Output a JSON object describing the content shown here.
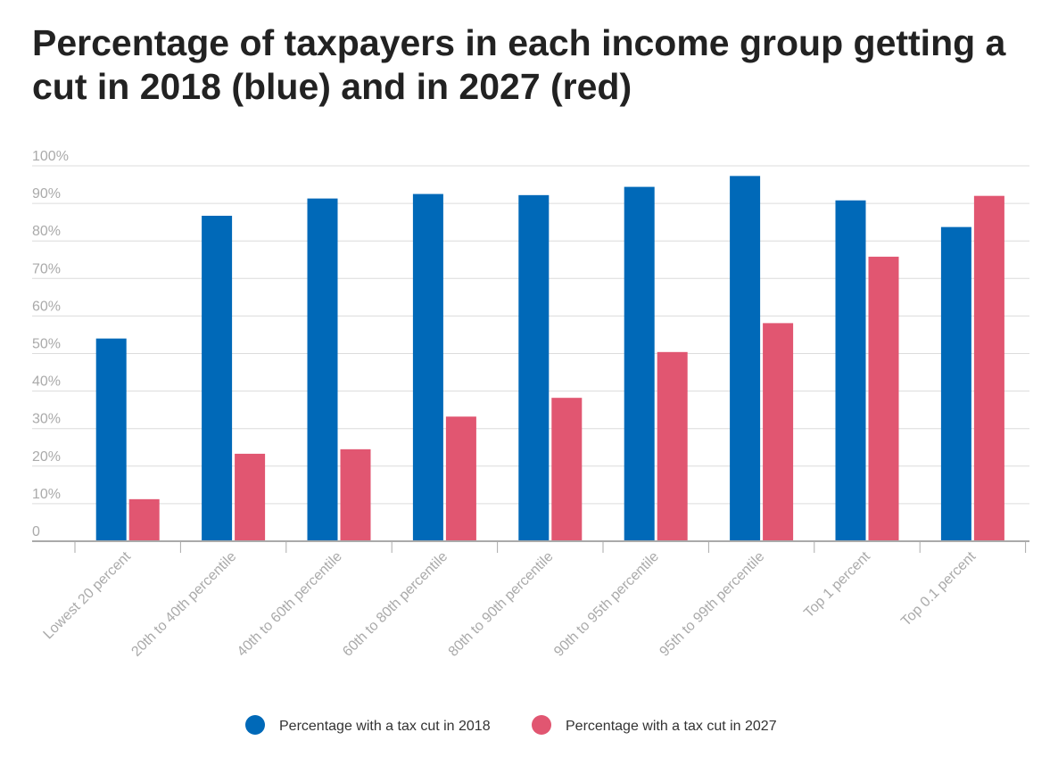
{
  "chart_data": {
    "type": "bar",
    "title": "Percentage of taxpayers in each income group getting a cut in 2018 (blue) and in 2027 (red)",
    "categories": [
      "Lowest 20 percent",
      "20th to 40th percentile",
      "40th to 60th percentile",
      "60th to 80th percentile",
      "80th to 90th percentile",
      "90th to 95th percentile",
      "95th to 99th percentile",
      "Top 1 percent",
      "Top 0.1 percent"
    ],
    "series": [
      {
        "name": "Percentage with a tax cut in 2018",
        "color": "#0069b8",
        "values": [
          54,
          86.7,
          91.3,
          92.5,
          92.2,
          94.4,
          97.3,
          90.8,
          83.7
        ]
      },
      {
        "name": "Percentage with a tax cut in 2027",
        "color": "#e15671",
        "values": [
          11.2,
          23.3,
          24.5,
          33.2,
          38.2,
          50.4,
          58.1,
          75.8,
          92
        ]
      }
    ],
    "ylim": [
      0,
      100
    ],
    "yticks": [
      0,
      10,
      20,
      30,
      40,
      50,
      60,
      70,
      80,
      90,
      100
    ],
    "ytick_labels": [
      "0",
      "10%",
      "20%",
      "30%",
      "40%",
      "50%",
      "60%",
      "70%",
      "80%",
      "90%",
      "100%"
    ],
    "xlabel": "",
    "ylabel": "",
    "grid": true,
    "legend": "bottom-center"
  }
}
